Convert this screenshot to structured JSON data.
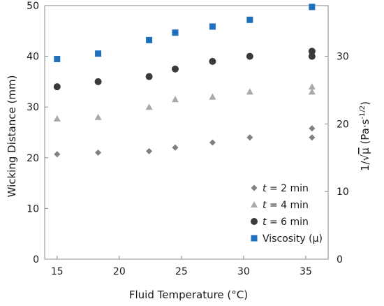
{
  "chart_data": {
    "type": "scatter",
    "xlabel": "Fluid Temperature (°C)",
    "ylabel": "Wicking Distance (mm)",
    "y2label": "1/√μ (Pa·s-1/2)",
    "y2label_parts": {
      "prefix": "1/",
      "root": "√",
      "mu": "μ",
      "unit": " (Pa·s",
      "sup": "-1/2",
      "close": ")"
    },
    "xlim": [
      14,
      36.8
    ],
    "ylim": [
      0,
      50
    ],
    "y2lim": [
      0,
      37.5
    ],
    "xticks": [
      "15",
      "20",
      "25",
      "30",
      "35"
    ],
    "yticks": [
      "0",
      "10",
      "20",
      "30",
      "40",
      "50"
    ],
    "y2ticks": [
      "0",
      "10",
      "20",
      "30"
    ],
    "grid": false,
    "legend_position": "bottom-right",
    "series": [
      {
        "name": "t = 2 min",
        "label_italic": "t",
        "label_rest": " = 2 min",
        "marker": "diamond",
        "color": "#808080",
        "axis": "left",
        "points": [
          [
            15,
            20.7
          ],
          [
            18.3,
            21.0
          ],
          [
            22.4,
            21.3
          ],
          [
            24.5,
            22.0
          ],
          [
            27.5,
            23.0
          ],
          [
            30.5,
            24.0
          ],
          [
            35.5,
            25.8
          ],
          [
            35.5,
            24.0
          ]
        ]
      },
      {
        "name": "t = 4 min",
        "label_italic": "t",
        "label_rest": " = 4 min",
        "marker": "triangle",
        "color": "#a9a9a9",
        "axis": "left",
        "points": [
          [
            15,
            27.7
          ],
          [
            18.3,
            28.0
          ],
          [
            22.4,
            30.0
          ],
          [
            24.5,
            31.5
          ],
          [
            27.5,
            32.0
          ],
          [
            30.5,
            33.0
          ],
          [
            35.5,
            34.0
          ],
          [
            35.5,
            33.0
          ]
        ]
      },
      {
        "name": "t = 6 min",
        "label_italic": "t",
        "label_rest": " = 6 min",
        "marker": "circle",
        "color": "#3a3a3a",
        "axis": "left",
        "points": [
          [
            15,
            34.0
          ],
          [
            18.3,
            35.0
          ],
          [
            22.4,
            36.0
          ],
          [
            24.5,
            37.5
          ],
          [
            27.5,
            39.0
          ],
          [
            30.5,
            40.0
          ],
          [
            35.5,
            41.0
          ],
          [
            35.5,
            40.0
          ]
        ]
      },
      {
        "name": "Viscosity (μ)",
        "label_italic": "",
        "label_rest": "Viscosity (μ)",
        "marker": "square",
        "color": "#1f6fbf",
        "axis": "right",
        "points": [
          [
            15,
            29.6
          ],
          [
            18.3,
            30.4
          ],
          [
            22.4,
            32.4
          ],
          [
            24.5,
            33.5
          ],
          [
            27.5,
            34.4
          ],
          [
            30.5,
            35.4
          ],
          [
            35.5,
            37.3
          ]
        ]
      }
    ]
  }
}
